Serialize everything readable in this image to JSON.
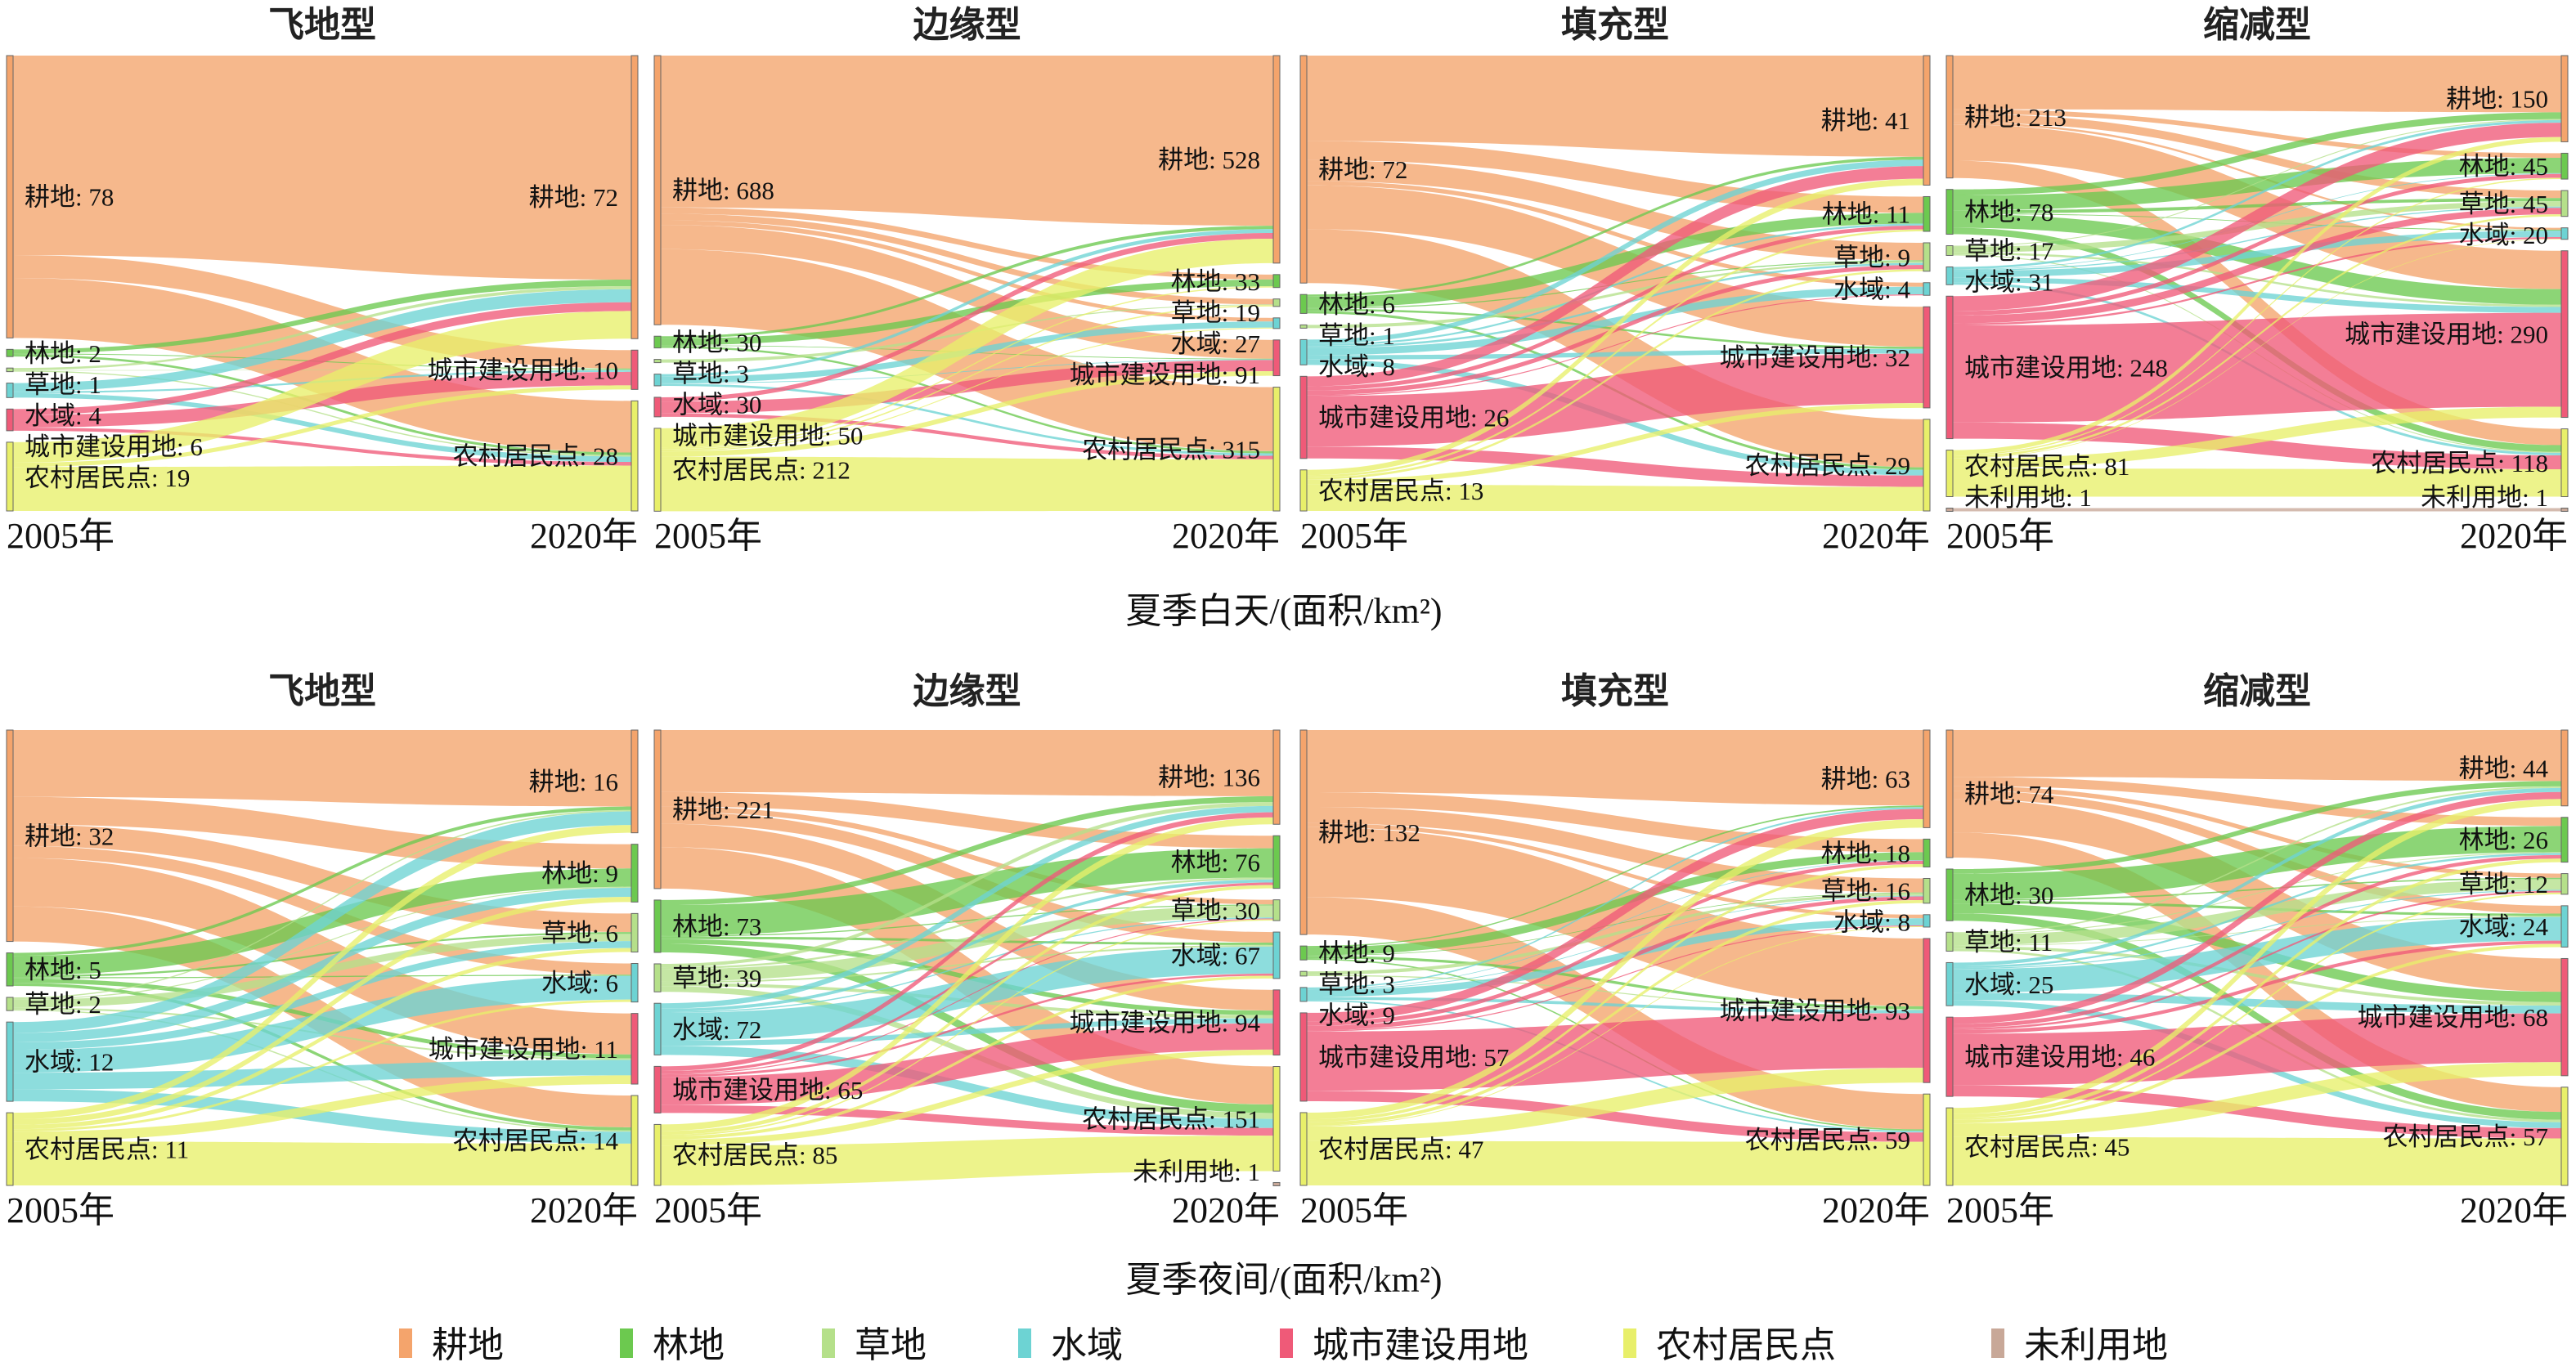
{
  "legend": [
    {
      "name": "耕地",
      "color": "#f4a46c"
    },
    {
      "name": "林地",
      "color": "#6cc94f"
    },
    {
      "name": "草地",
      "color": "#b5e08a"
    },
    {
      "name": "水域",
      "color": "#6dd3d3"
    },
    {
      "name": "城市建设用地",
      "color": "#ef5a78"
    },
    {
      "name": "农村居民点",
      "color": "#e8ef6a"
    },
    {
      "name": "未利用地",
      "color": "#c8a898"
    }
  ],
  "row_captions": [
    "夏季白天/(面积/km²)",
    "夏季夜间/(面积/km²)"
  ],
  "year_left": "2005年",
  "year_right": "2020年",
  "chart_data": [
    {
      "type": "sankey",
      "row": 0,
      "title": "飞地型",
      "left": [
        {
          "name": "耕地",
          "value": 78
        },
        {
          "name": "林地",
          "value": 2
        },
        {
          "name": "草地",
          "value": 1
        },
        {
          "name": "水域",
          "value": 4
        },
        {
          "name": "城市建设用地",
          "value": 6
        },
        {
          "name": "农村居民点",
          "value": 19
        }
      ],
      "right": [
        {
          "name": "耕地",
          "value": 72
        },
        {
          "name": "城市建设用地",
          "value": 10
        },
        {
          "name": "农村居民点",
          "value": 28
        }
      ]
    },
    {
      "type": "sankey",
      "row": 0,
      "title": "边缘型",
      "left": [
        {
          "name": "耕地",
          "value": 688
        },
        {
          "name": "林地",
          "value": 30
        },
        {
          "name": "草地",
          "value": 3
        },
        {
          "name": "水域",
          "value": 30
        },
        {
          "name": "城市建设用地",
          "value": 50
        },
        {
          "name": "农村居民点",
          "value": 212
        }
      ],
      "right": [
        {
          "name": "耕地",
          "value": 528
        },
        {
          "name": "林地",
          "value": 33
        },
        {
          "name": "草地",
          "value": 19
        },
        {
          "name": "水域",
          "value": 27
        },
        {
          "name": "城市建设用地",
          "value": 91
        },
        {
          "name": "农村居民点",
          "value": 315
        }
      ]
    },
    {
      "type": "sankey",
      "row": 0,
      "title": "填充型",
      "left": [
        {
          "name": "耕地",
          "value": 72
        },
        {
          "name": "林地",
          "value": 6
        },
        {
          "name": "草地",
          "value": 1
        },
        {
          "name": "水域",
          "value": 8
        },
        {
          "name": "城市建设用地",
          "value": 26
        },
        {
          "name": "农村居民点",
          "value": 13
        }
      ],
      "right": [
        {
          "name": "耕地",
          "value": 41
        },
        {
          "name": "林地",
          "value": 11
        },
        {
          "name": "草地",
          "value": 9
        },
        {
          "name": "水域",
          "value": 4
        },
        {
          "name": "城市建设用地",
          "value": 32
        },
        {
          "name": "农村居民点",
          "value": 29
        }
      ]
    },
    {
      "type": "sankey",
      "row": 0,
      "title": "缩减型",
      "left": [
        {
          "name": "耕地",
          "value": 213
        },
        {
          "name": "林地",
          "value": 78
        },
        {
          "name": "草地",
          "value": 17
        },
        {
          "name": "水域",
          "value": 31
        },
        {
          "name": "城市建设用地",
          "value": 248
        },
        {
          "name": "农村居民点",
          "value": 81
        },
        {
          "name": "未利用地",
          "value": 1
        }
      ],
      "right": [
        {
          "name": "耕地",
          "value": 150
        },
        {
          "name": "林地",
          "value": 45
        },
        {
          "name": "草地",
          "value": 45
        },
        {
          "name": "水域",
          "value": 20
        },
        {
          "name": "城市建设用地",
          "value": 290
        },
        {
          "name": "农村居民点",
          "value": 118
        },
        {
          "name": "未利用地",
          "value": 1
        }
      ]
    },
    {
      "type": "sankey",
      "row": 1,
      "title": "飞地型",
      "left": [
        {
          "name": "耕地",
          "value": 32
        },
        {
          "name": "林地",
          "value": 5
        },
        {
          "name": "草地",
          "value": 2
        },
        {
          "name": "水域",
          "value": 12
        },
        {
          "name": "农村居民点",
          "value": 11
        }
      ],
      "right": [
        {
          "name": "耕地",
          "value": 16
        },
        {
          "name": "林地",
          "value": 9
        },
        {
          "name": "草地",
          "value": 6
        },
        {
          "name": "水域",
          "value": 6
        },
        {
          "name": "城市建设用地",
          "value": 11
        },
        {
          "name": "农村居民点",
          "value": 14
        }
      ]
    },
    {
      "type": "sankey",
      "row": 1,
      "title": "边缘型",
      "left": [
        {
          "name": "耕地",
          "value": 221
        },
        {
          "name": "林地",
          "value": 73
        },
        {
          "name": "草地",
          "value": 39
        },
        {
          "name": "水域",
          "value": 72
        },
        {
          "name": "城市建设用地",
          "value": 65
        },
        {
          "name": "农村居民点",
          "value": 85
        }
      ],
      "right": [
        {
          "name": "耕地",
          "value": 136
        },
        {
          "name": "林地",
          "value": 76
        },
        {
          "name": "草地",
          "value": 30
        },
        {
          "name": "水域",
          "value": 67
        },
        {
          "name": "城市建设用地",
          "value": 94
        },
        {
          "name": "农村居民点",
          "value": 151
        },
        {
          "name": "未利用地",
          "value": 1
        }
      ]
    },
    {
      "type": "sankey",
      "row": 1,
      "title": "填充型",
      "left": [
        {
          "name": "耕地",
          "value": 132
        },
        {
          "name": "林地",
          "value": 9
        },
        {
          "name": "草地",
          "value": 3
        },
        {
          "name": "水域",
          "value": 9
        },
        {
          "name": "城市建设用地",
          "value": 57
        },
        {
          "name": "农村居民点",
          "value": 47
        }
      ],
      "right": [
        {
          "name": "耕地",
          "value": 63
        },
        {
          "name": "林地",
          "value": 18
        },
        {
          "name": "草地",
          "value": 16
        },
        {
          "name": "水域",
          "value": 8
        },
        {
          "name": "城市建设用地",
          "value": 93
        },
        {
          "name": "农村居民点",
          "value": 59
        }
      ]
    },
    {
      "type": "sankey",
      "row": 1,
      "title": "缩减型",
      "left": [
        {
          "name": "耕地",
          "value": 74
        },
        {
          "name": "林地",
          "value": 30
        },
        {
          "name": "草地",
          "value": 11
        },
        {
          "name": "水域",
          "value": 25
        },
        {
          "name": "城市建设用地",
          "value": 46
        },
        {
          "name": "农村居民点",
          "value": 45
        }
      ],
      "right": [
        {
          "name": "耕地",
          "value": 44
        },
        {
          "name": "林地",
          "value": 26
        },
        {
          "name": "草地",
          "value": 12
        },
        {
          "name": "水域",
          "value": 24
        },
        {
          "name": "城市建设用地",
          "value": 68
        },
        {
          "name": "农村居民点",
          "value": 57
        }
      ]
    }
  ]
}
